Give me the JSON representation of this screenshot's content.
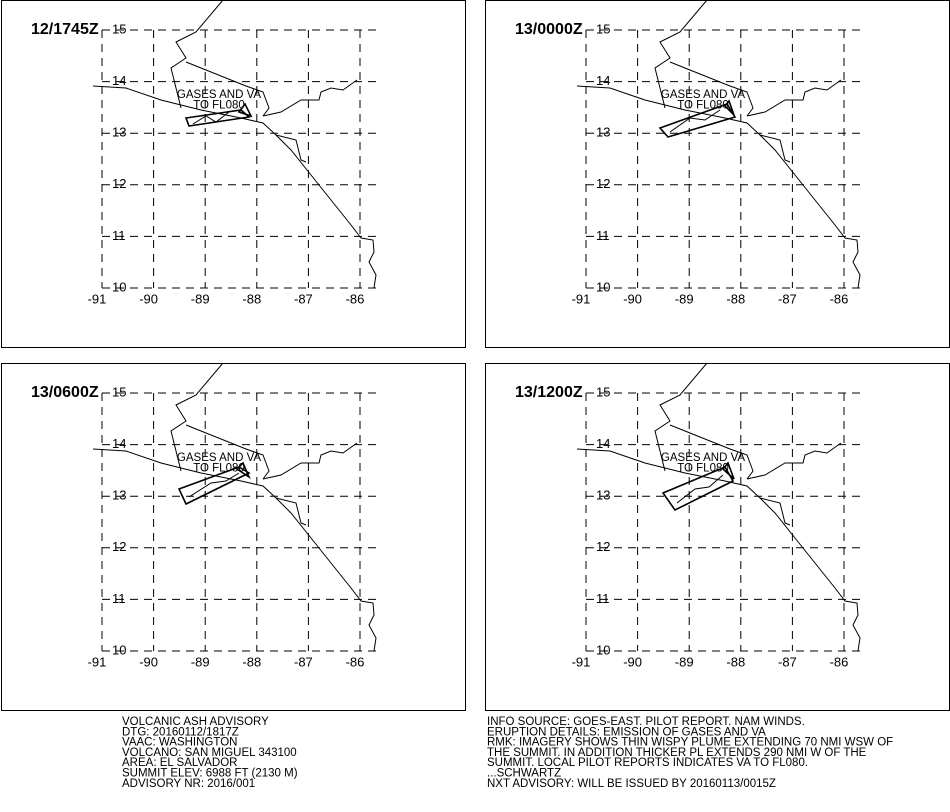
{
  "panels": [
    {
      "time": "12/1745Z",
      "plume_label": [
        "GASES AND VA",
        "TO FL080"
      ],
      "lat_labels": [
        "15",
        "14",
        "13",
        "12",
        "11",
        "10"
      ],
      "lon_labels": [
        "-91",
        "-90",
        "-89",
        "-88",
        "-87",
        "-86"
      ]
    },
    {
      "time": "13/0000Z",
      "plume_label": [
        "GASES AND VA",
        "TO FL080"
      ],
      "lat_labels": [
        "15",
        "14",
        "13",
        "12",
        "11",
        "10"
      ],
      "lon_labels": [
        "-91",
        "-90",
        "-89",
        "-88",
        "-87",
        "-86"
      ]
    },
    {
      "time": "13/0600Z",
      "plume_label": [
        "GASES AND VA",
        "TO FL080"
      ],
      "lat_labels": [
        "15",
        "14",
        "13",
        "12",
        "11",
        "10"
      ],
      "lon_labels": [
        "-91",
        "-90",
        "-89",
        "-88",
        "-87",
        "-86"
      ]
    },
    {
      "time": "13/1200Z",
      "plume_label": [
        "GASES AND VA",
        "TO FL080"
      ],
      "lat_labels": [
        "15",
        "14",
        "13",
        "12",
        "11",
        "10"
      ],
      "lon_labels": [
        "-91",
        "-90",
        "-89",
        "-88",
        "-87",
        "-86"
      ]
    }
  ],
  "advisory_left": [
    "VOLCANIC ASH ADVISORY",
    "DTG: 20160112/1817Z",
    "VAAC: WASHINGTON",
    "VOLCANO: SAN MIGUEL 343100",
    "AREA: EL SALVADOR",
    "SUMMIT ELEV: 6988 FT (2130 M)",
    "ADVISORY NR: 2016/001"
  ],
  "advisory_right": [
    "INFO SOURCE: GOES-EAST. PILOT REPORT. NAM WINDS.",
    "ERUPTION DETAILS: EMISSION OF GASES AND VA",
    "RMK: IMAGERY SHOWS THIN WISPY PLUME EXTENDING 70 NMI WSW OF",
    "THE SUMMIT. IN ADDITION THICKER PL EXTENDS 290 NMI W OF THE",
    "SUMMIT. LOCAL PILOT REPORTS INDICATES VA TO FL080.",
    "...SCHWARTZ",
    "NXT ADVISORY: WILL BE ISSUED BY 20160113/0015Z"
  ]
}
